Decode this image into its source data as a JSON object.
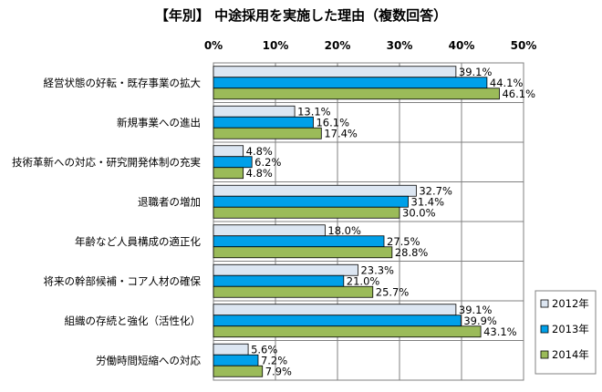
{
  "chart_data": {
    "type": "bar",
    "orientation": "horizontal",
    "title": "【年別】 中途採用を実施した理由（複数回答）",
    "categories": [
      "経営状態の好転・既存事業の拡大",
      "新規事業への進出",
      "技術革新への対応・研究開発体制の充実",
      "退職者の増加",
      "年齢など人員構成の適正化",
      "将来の幹部候補・コア人材の確保",
      "組織の存続と強化（活性化）",
      "労働時間短縮への対応"
    ],
    "series": [
      {
        "name": "2012年",
        "color": "#dce6f2",
        "values": [
          39.1,
          13.1,
          4.8,
          32.7,
          18.0,
          23.3,
          39.1,
          5.6
        ],
        "labels": [
          "39.1%",
          "13.1%",
          "4.8%",
          "32.7%",
          "18.0%",
          "23.3%",
          "39.1%",
          "5.6%"
        ]
      },
      {
        "name": "2013年",
        "color": "#00a0e9",
        "values": [
          44.1,
          16.1,
          6.2,
          31.4,
          27.5,
          21.0,
          39.9,
          7.2
        ],
        "labels": [
          "44.1%",
          "16.1%",
          "6.2%",
          "31.4%",
          "27.5%",
          "21.0%",
          "39.9%",
          "7.2%"
        ]
      },
      {
        "name": "2014年",
        "color": "#9bbb59",
        "values": [
          46.1,
          17.4,
          4.8,
          30.0,
          28.8,
          25.7,
          43.1,
          7.9
        ],
        "labels": [
          "46.1%",
          "17.4%",
          "4.8%",
          "30.0%",
          "28.8%",
          "25.7%",
          "43.1%",
          "7.9%"
        ]
      }
    ],
    "xlim": [
      0,
      50
    ],
    "ticks": [
      0,
      10,
      20,
      30,
      40,
      50
    ],
    "tick_labels": [
      "0%",
      "10%",
      "20%",
      "30%",
      "40%",
      "50%"
    ],
    "xlabel": "",
    "ylabel": "",
    "grid": true,
    "legend_position": "bottom-right"
  }
}
